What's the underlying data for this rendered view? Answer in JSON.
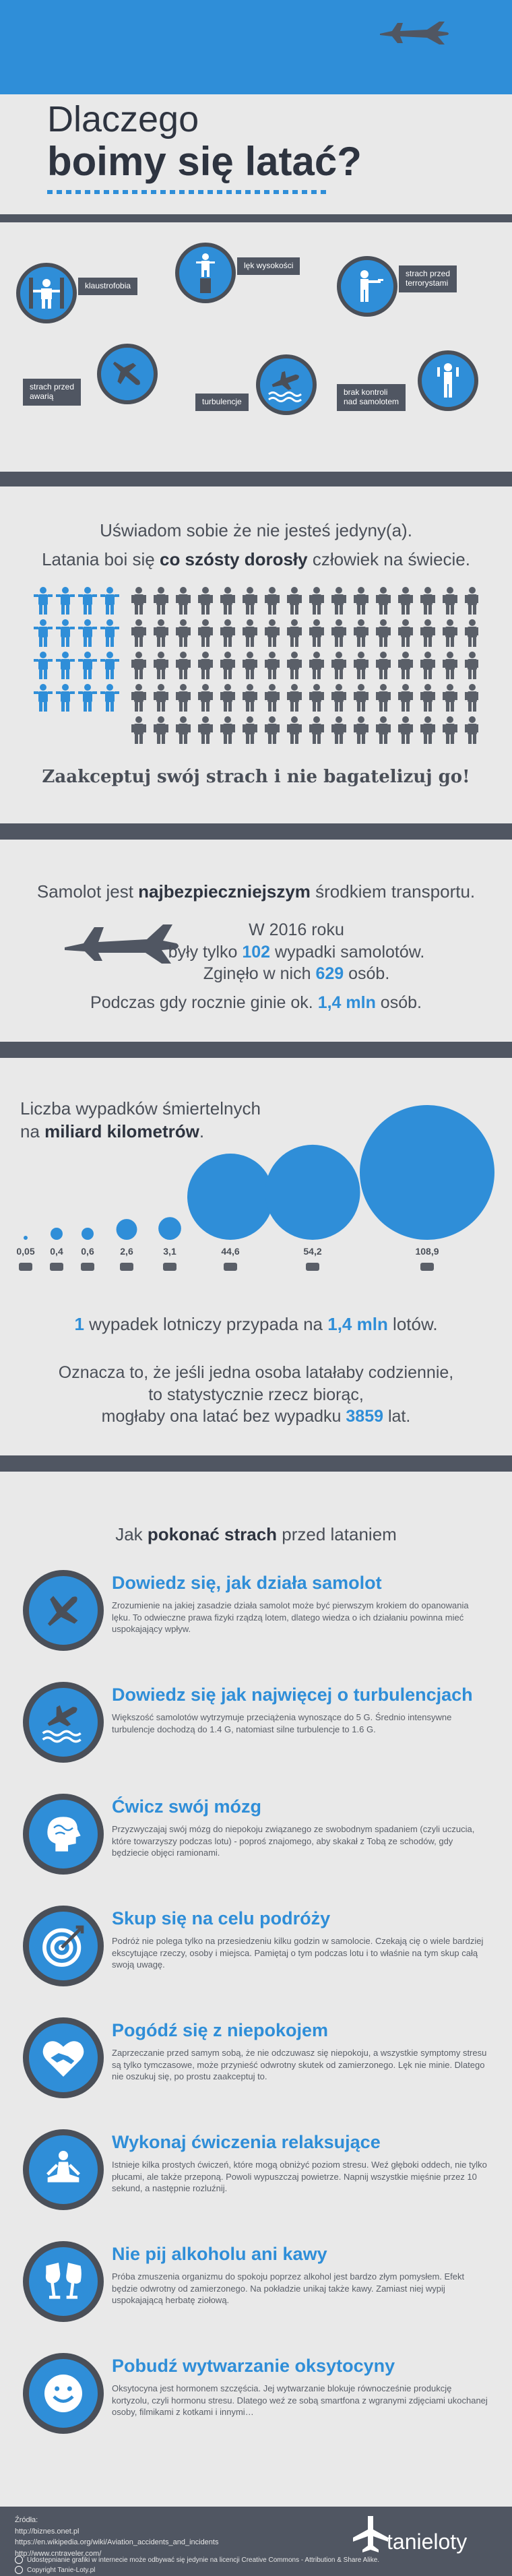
{
  "hero": {
    "title_line1": "Dlaczego",
    "title_line2": "boimy się latać?",
    "sky_color": "#2f8ed8"
  },
  "fears": [
    {
      "label": "klaustrofobia",
      "icon": "person-boxed-icon"
    },
    {
      "label": "lęk wysokości",
      "icon": "person-on-pillar-icon"
    },
    {
      "label": "strach przed\nterrorystami",
      "icon": "gunman-icon"
    },
    {
      "label": "strach przed\nawarią",
      "icon": "falling-plane-icon"
    },
    {
      "label": "turbulencje",
      "icon": "plane-on-waves-icon"
    },
    {
      "label": "brak kontroli\nnad samolotem",
      "icon": "person-waving-icon"
    }
  ],
  "stats1": {
    "line1": "Uświadom sobie że nie jesteś jedyny(a).",
    "line2_pre": "Latania boi się ",
    "line2_bold": "co szósty dorosły",
    "line2_post": " człowiek na świecie.",
    "call": "Zaakceptuj swój strach i nie bagatelizuj go!",
    "blue_people": 16,
    "gray_people": 80
  },
  "stats2": {
    "heading_pre": "Samolot jest ",
    "heading_bold": "najbezpieczniejszym",
    "heading_post": " środkiem transportu.",
    "year": "W 2016 roku",
    "acc_pre": "były tylko ",
    "acc_num": "102",
    "acc_post": " wypadki samolotów.",
    "died_pre": "Zginęło w nich ",
    "died_num": "629",
    "died_post": " osób.",
    "road_pre": "Podczas gdy rocznie ginie ok. ",
    "road_num": "1,4 mln",
    "road_post": " osób."
  },
  "chart_data": {
    "type": "bubble",
    "title_line1": "Liczba wypadków śmiertelnych",
    "title_pre": "na ",
    "title_bold": "miliard kilometrów",
    "title_post": ".",
    "categories": [
      "plane-icon",
      "bus-icon",
      "ship-icon",
      "train-icon",
      "car-icon",
      "bicycle-icon",
      "pedestrian-icon",
      "motorcycle-icon"
    ],
    "values": [
      0.05,
      0.4,
      0.6,
      2.6,
      3.1,
      44.6,
      54.2,
      108.9
    ],
    "value_labels": [
      "0,05",
      "0,4",
      "0,6",
      "2,6",
      "3,1",
      "44,6",
      "54,2",
      "108,9"
    ]
  },
  "stats3": {
    "l1_num": "1",
    "l1_mid": " wypadek lotniczy przypada na ",
    "l1_num2": "1,4 mln",
    "l1_post": " lotów.",
    "p1": "Oznacza to, że jeśli jedna osoba latałaby codziennie,",
    "p2": "to statystycznie rzecz biorąc,",
    "p3_pre": "mogłaby ona latać bez wypadku ",
    "p3_num": "3859",
    "p3_post": " lat."
  },
  "tips_heading": {
    "pre": "Jak ",
    "bold": "pokonać strach",
    "post": " przed lataniem"
  },
  "tips": [
    {
      "title": "Dowiedz się, jak działa samolot",
      "text": "Zrozumienie na jakiej zasadzie działa samolot może być pierwszym krokiem do opanowania lęku. To odwieczne prawa fizyki rządzą lotem, dlatego wiedza o ich działaniu powinna mieć uspokajający wpływ.",
      "icon": "plane-icon"
    },
    {
      "title": "Dowiedz się jak najwięcej o turbulencjach",
      "text": "Większość samolotów wytrzymuje przeciążenia wynoszące do 5 G. Średnio intensywne turbulencje dochodzą do 1.4 G, natomiast silne turbulencje to 1.6 G.",
      "icon": "plane-waves-icon"
    },
    {
      "title": "Ćwicz swój mózg",
      "text": "Przyzwyczajaj swój mózg do niepokoju związanego ze swobodnym spadaniem (czyli uczucia, które towarzyszy podczas lotu) - poproś znajomego, aby skakał z Tobą ze schodów, gdy będziecie objęci ramionami.",
      "icon": "brain-icon"
    },
    {
      "title": "Skup się na celu podróży",
      "text": "Podróż nie polega tylko na przesiedzeniu kilku godzin w samolocie. Czekają cię o wiele bardziej ekscytujące rzeczy, osoby i miejsca. Pamiętaj o tym podczas lotu i to właśnie na tym skup całą swoją uwagę.",
      "icon": "target-icon"
    },
    {
      "title": "Pogódź się z niepokojem",
      "text": "Zaprzeczanie przed samym sobą, że nie odczuwasz się niepokoju, a wszystkie symptomy stresu są tylko tymczasowe, może przynieść odwrotny skutek od zamierzonego. Lęk nie minie. Dlatego nie oszukuj się, po prostu zaakceptuj to.",
      "icon": "handshake-heart-icon"
    },
    {
      "title": "Wykonaj ćwiczenia relaksujące",
      "text": "Istnieje kilka prostych ćwiczeń, które mogą obniżyć poziom stresu. Weź głęboki oddech, nie tylko płucami, ale także przeponą. Powoli wypuszczaj powietrze. Napnij wszystkie mięśnie przez 10 sekund, a następnie rozluźnij.",
      "icon": "meditation-icon"
    },
    {
      "title": "Nie pij alkoholu ani kawy",
      "text": "Próba zmuszenia organizmu do spokoju poprzez alkohol jest bardzo złym pomysłem. Efekt będzie odwrotny od zamierzonego. Na pokładzie unikaj także kawy. Zamiast niej wypij uspokajającą herbatę ziołową.",
      "icon": "wine-glasses-icon"
    },
    {
      "title": "Pobudź wytwarzanie oksytocyny",
      "text": "Oksytocyna jest hormonem szczęścia. Jej wytwarzanie blokuje równocześnie produkcję kortyzolu, czyli hormonu stresu. Dlatego weź ze sobą smartfona z wgranymi zdjęciami ukochanej osoby, filmikami z kotkami i innymi…",
      "icon": "smiley-icon"
    }
  ],
  "footer": {
    "sources_label": "Źródła:",
    "src1": "http://biznes.onet.pl",
    "src2": "https://en.wikipedia.org/wiki/Aviation_accidents_and_incidents",
    "src3": "http://www.cntraveler.com/",
    "license": "Udostępnianie grafiki w internecie może odbywać się jedynie na licencji Creative Commons - Attribution & Share Alike.",
    "copyright": "Copyright Tanie-Loty.pl",
    "brand": "tanieloty"
  }
}
